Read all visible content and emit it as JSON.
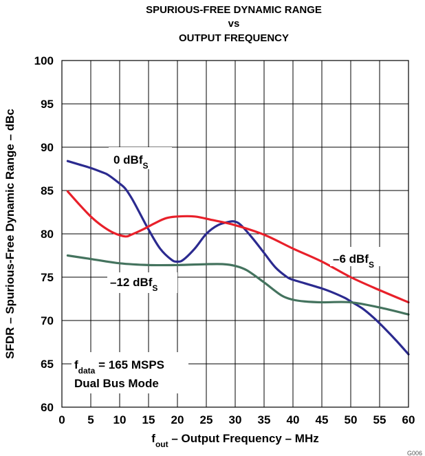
{
  "chart_data": {
    "type": "line",
    "title_lines": [
      "SPURIOUS-FREE DYNAMIC RANGE",
      "vs",
      "OUTPUT FREQUENCY"
    ],
    "xlabel": {
      "main": "f",
      "sub": "out",
      "rest": " – Output Frequency – MHz"
    },
    "ylabel": "SFDR – Spurious-Free Dynamic Range – dBc",
    "xlim": [
      0,
      60
    ],
    "ylim": [
      60,
      100
    ],
    "xticks": [
      0,
      5,
      10,
      15,
      20,
      25,
      30,
      35,
      40,
      45,
      50,
      55,
      60
    ],
    "yticks": [
      60,
      65,
      70,
      75,
      80,
      85,
      90,
      95,
      100
    ],
    "grid": true,
    "series": [
      {
        "name": "0 dBfS",
        "color": "#2b2a8f",
        "x": [
          1,
          3,
          5,
          7,
          8,
          10,
          11,
          12,
          13,
          15,
          17,
          19,
          20,
          21,
          23,
          25,
          27,
          29,
          30,
          31,
          33,
          35,
          37,
          39,
          40,
          42,
          45,
          47,
          49,
          50,
          52,
          54,
          56,
          58,
          60
        ],
        "y": [
          88.4,
          88.0,
          87.6,
          87.1,
          86.8,
          85.8,
          85.2,
          84.2,
          83.0,
          80.5,
          78.3,
          77.0,
          76.8,
          77.0,
          78.3,
          80.0,
          81.0,
          81.4,
          81.4,
          81.0,
          79.5,
          77.8,
          76.1,
          75.0,
          74.7,
          74.3,
          73.7,
          73.2,
          72.6,
          72.2,
          71.4,
          70.3,
          69.0,
          67.6,
          66.1
        ]
      },
      {
        "name": "−6 dBfS",
        "color": "#e8202a",
        "x": [
          1,
          3,
          5,
          7,
          9,
          11,
          12,
          14,
          16,
          18,
          20,
          23,
          26,
          30,
          35,
          40,
          45,
          50,
          55,
          60
        ],
        "y": [
          84.9,
          83.4,
          82.0,
          80.9,
          80.1,
          79.7,
          79.9,
          80.5,
          81.2,
          81.8,
          82.0,
          82.0,
          81.6,
          81.0,
          79.9,
          78.3,
          76.8,
          75.0,
          73.5,
          72.1
        ]
      },
      {
        "name": "−12 dBfS",
        "color": "#44735e",
        "x": [
          1,
          5,
          10,
          15,
          20,
          25,
          28,
          30,
          32,
          35,
          38,
          40,
          42,
          45,
          50,
          55,
          60
        ],
        "y": [
          77.5,
          77.1,
          76.6,
          76.4,
          76.4,
          76.5,
          76.5,
          76.3,
          75.8,
          74.4,
          72.9,
          72.4,
          72.2,
          72.1,
          72.1,
          71.5,
          70.7
        ]
      }
    ],
    "annotations": [
      {
        "main": "0 dBf",
        "sub": "S"
      },
      {
        "main": "–6 dBf",
        "sub": "S"
      },
      {
        "main": "–12 dBf",
        "sub": "S"
      }
    ],
    "note_lines": [
      {
        "main": "f",
        "sub": "data",
        "rest": " = 165 MSPS"
      },
      {
        "main": "Dual Bus Mode",
        "sub": "",
        "rest": ""
      }
    ],
    "figure_id": "G006"
  }
}
